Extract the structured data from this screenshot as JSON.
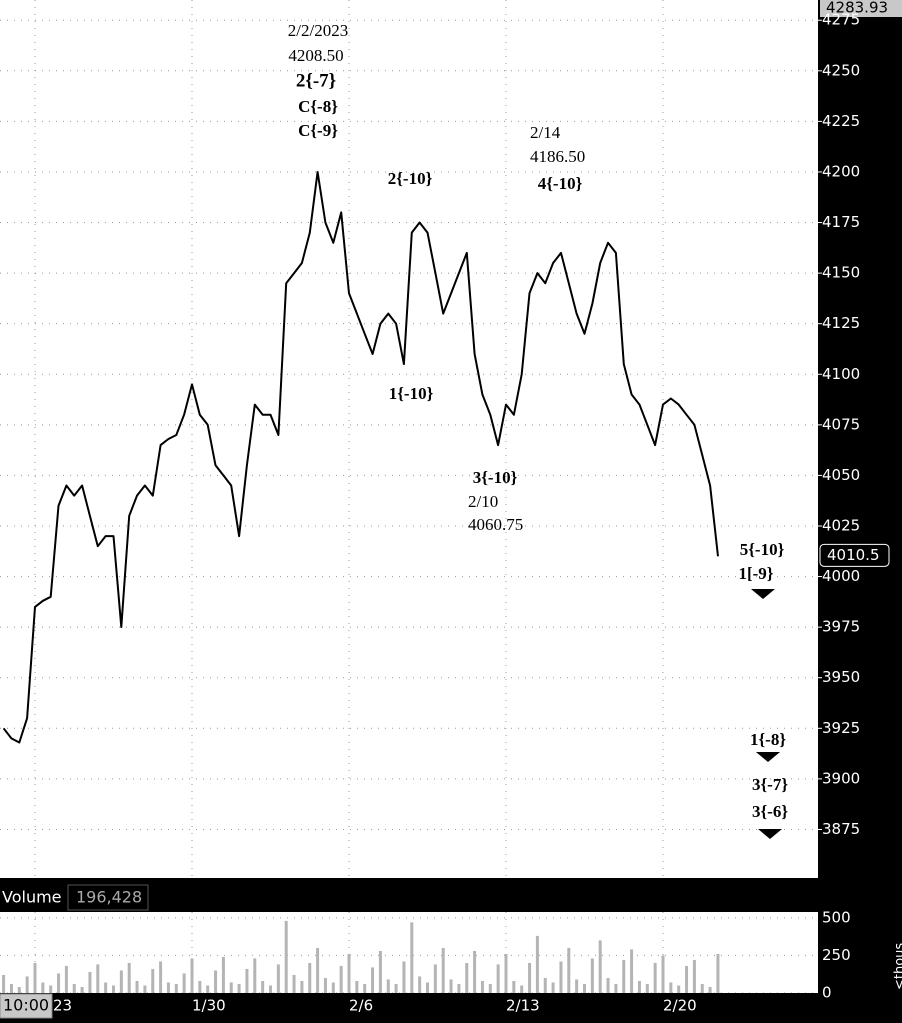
{
  "chart_data": [
    {
      "type": "line",
      "categories": [
        null,
        null,
        null,
        null,
        "23",
        null,
        null,
        null,
        null,
        null,
        null,
        null,
        null,
        null,
        null,
        null,
        null,
        null,
        null,
        null,
        null,
        null,
        null,
        null,
        "1/30",
        null,
        null,
        null,
        null,
        null,
        null,
        null,
        null,
        null,
        null,
        null,
        null,
        null,
        null,
        null,
        null,
        null,
        null,
        null,
        "2/6",
        null,
        null,
        null,
        null,
        null,
        null,
        null,
        null,
        null,
        null,
        null,
        null,
        null,
        null,
        null,
        null,
        null,
        null,
        null,
        "2/13",
        null,
        null,
        null,
        null,
        null,
        null,
        null,
        null,
        null,
        null,
        null,
        null,
        null,
        null,
        null,
        null,
        null,
        null,
        null,
        "2/20",
        null,
        null,
        null,
        null,
        null,
        null,
        null
      ],
      "series": [
        {
          "color": "#000000",
          "values": [
            3925,
            3920,
            3918,
            3930,
            3985,
            3988,
            3990,
            4035,
            4045,
            4040,
            4045,
            4030,
            4015,
            4020,
            4020,
            3975,
            4030,
            4040,
            4045,
            4040,
            4065,
            4068,
            4070,
            4080,
            4095,
            4080,
            4075,
            4055,
            4050,
            4045,
            4020,
            4055,
            4085,
            4080,
            4080,
            4070,
            4145,
            4150,
            4155,
            4170,
            4200,
            4175,
            4165,
            4180,
            4140,
            4130,
            4120,
            4110,
            4125,
            4130,
            4125,
            4105,
            4170,
            4175,
            4170,
            4150,
            4130,
            4140,
            4150,
            4160,
            4110,
            4090,
            4080,
            4065,
            4085,
            4080,
            4100,
            4140,
            4150,
            4145,
            4155,
            4160,
            4145,
            4130,
            4120,
            4135,
            4155,
            4165,
            4160,
            4105,
            4090,
            4085,
            4075,
            4065,
            4085,
            4088,
            4085,
            4080,
            4075,
            4060,
            4045,
            4010
          ]
        }
      ],
      "ylim": [
        3851,
        4285
      ],
      "yticks": [
        3875,
        3900,
        3925,
        3950,
        3975,
        4000,
        4025,
        4050,
        4075,
        4100,
        4125,
        4150,
        4175,
        4200,
        4225,
        4250,
        4275
      ],
      "grid": true,
      "last_price": 4010.5,
      "high_price": 4283.93,
      "annotations": [
        [
          "2/2/2023",
          "4208.50",
          "2{-7}",
          "C{-8}",
          "C{-9}"
        ],
        [
          "2{-10}"
        ],
        [
          "1{-10}"
        ],
        [
          "2/14",
          "4186.50",
          "4{-10}"
        ],
        [
          "3{-10}",
          "2/10",
          "4060.75"
        ],
        [
          "5{-10}",
          "1[-9}"
        ],
        [
          "1{-8}"
        ],
        [
          "3{-7}",
          "3{-6}"
        ]
      ]
    },
    {
      "type": "bar",
      "title": "Volume",
      "total": {
        "value": 196428,
        "label": "196,428"
      },
      "axis_label": "<thous",
      "color": "#b4b4b4",
      "values": [
        120,
        60,
        40,
        110,
        200,
        70,
        50,
        130,
        180,
        60,
        40,
        140,
        190,
        70,
        50,
        150,
        200,
        80,
        50,
        160,
        210,
        70,
        60,
        130,
        230,
        80,
        50,
        150,
        240,
        70,
        60,
        160,
        230,
        80,
        50,
        190,
        480,
        120,
        80,
        200,
        300,
        100,
        70,
        180,
        260,
        80,
        60,
        170,
        280,
        90,
        60,
        210,
        470,
        110,
        70,
        190,
        300,
        90,
        60,
        200,
        280,
        80,
        60,
        190,
        260,
        80,
        50,
        200,
        380,
        100,
        70,
        210,
        300,
        90,
        60,
        230,
        350,
        100,
        60,
        220,
        290,
        80,
        60,
        200,
        250,
        70,
        50,
        180,
        220,
        60,
        40,
        260
      ],
      "ylim": [
        0,
        539
      ],
      "yticks": [
        0,
        250,
        500
      ],
      "grid": true
    }
  ],
  "time_label": "10:00"
}
